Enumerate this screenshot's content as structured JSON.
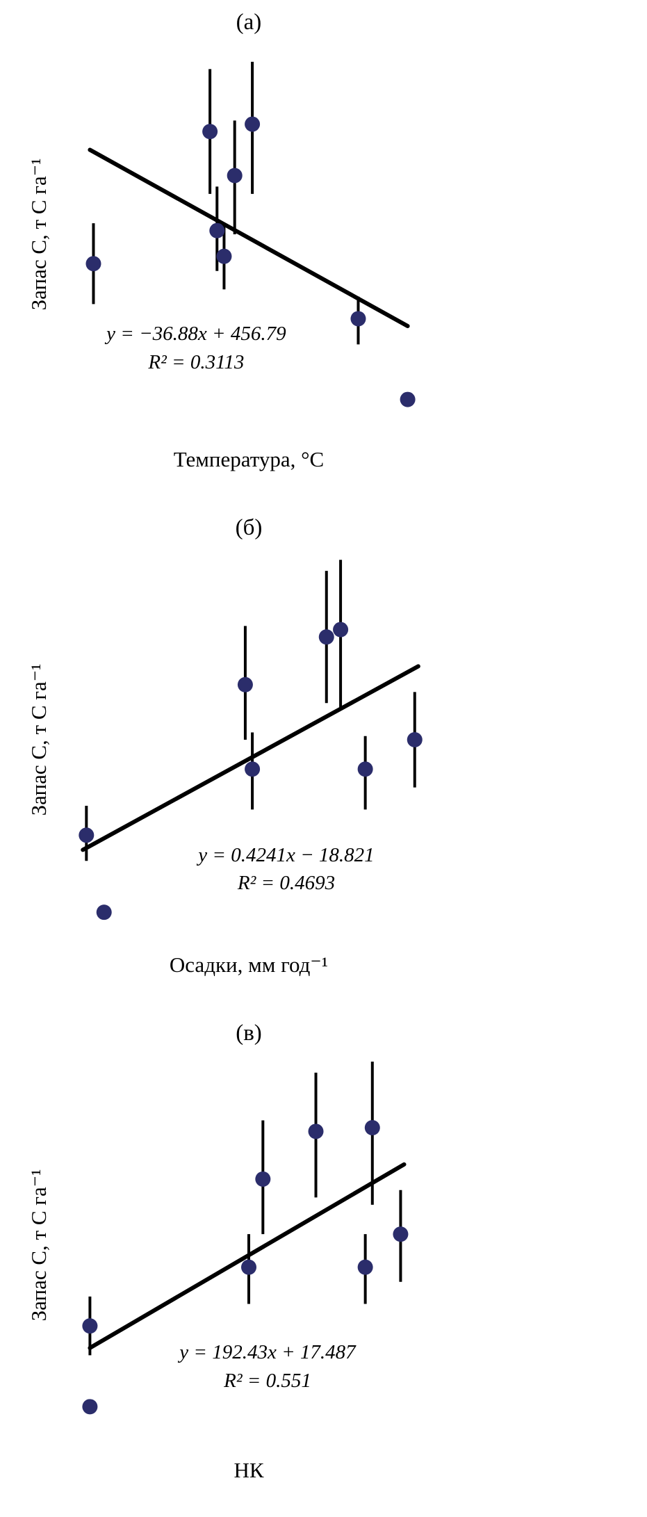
{
  "styles": {
    "point_color": "#2b2d6b",
    "line_color": "#000000",
    "text_color": "#000000",
    "background": "#ffffff"
  },
  "chart_data": [
    {
      "type": "scatter",
      "title": "(а)",
      "xlabel": "Температура, °C",
      "ylabel": "Запас С, т С га⁻¹",
      "equation": "y = −36.88x + 456.79",
      "r_squared": "R² = 0.3113",
      "legend": "none",
      "axes_visible": false,
      "grid": false,
      "coord_system": "fraction of plot area, y increases upward; no axis ticks shown in figure",
      "points": [
        {
          "x": 0.06,
          "y": 0.42,
          "lo": 0.31,
          "hi": 0.53
        },
        {
          "x": 0.39,
          "y": 0.78,
          "lo": 0.61,
          "hi": 0.95
        },
        {
          "x": 0.46,
          "y": 0.66,
          "lo": 0.5,
          "hi": 0.81
        },
        {
          "x": 0.51,
          "y": 0.8,
          "lo": 0.61,
          "hi": 0.97
        },
        {
          "x": 0.41,
          "y": 0.51,
          "lo": 0.4,
          "hi": 0.63
        },
        {
          "x": 0.43,
          "y": 0.44,
          "lo": 0.35,
          "hi": 0.53
        },
        {
          "x": 0.81,
          "y": 0.27,
          "lo": 0.2,
          "hi": 0.33
        },
        {
          "x": 0.95,
          "y": 0.05,
          "lo": null,
          "hi": null
        }
      ],
      "trendline": {
        "x1": 0.05,
        "y1": 0.73,
        "x2": 0.95,
        "y2": 0.25
      },
      "eq_pos": {
        "left_pct": 36,
        "top_pct": 72
      }
    },
    {
      "type": "scatter",
      "title": "(б)",
      "xlabel": "Осадки, мм год⁻¹",
      "ylabel": "Запас С, т С га⁻¹",
      "equation": "y = 0.4241x − 18.821",
      "r_squared": "R² = 0.4693",
      "legend": "none",
      "axes_visible": false,
      "grid": false,
      "coord_system": "fraction of plot area, y increases upward; no axis ticks shown in figure",
      "points": [
        {
          "x": 0.04,
          "y": 0.24,
          "lo": 0.17,
          "hi": 0.32
        },
        {
          "x": 0.09,
          "y": 0.03,
          "lo": null,
          "hi": null
        },
        {
          "x": 0.49,
          "y": 0.65,
          "lo": 0.5,
          "hi": 0.81
        },
        {
          "x": 0.51,
          "y": 0.42,
          "lo": 0.31,
          "hi": 0.52
        },
        {
          "x": 0.72,
          "y": 0.78,
          "lo": 0.6,
          "hi": 0.96
        },
        {
          "x": 0.76,
          "y": 0.8,
          "lo": 0.58,
          "hi": 0.99
        },
        {
          "x": 0.83,
          "y": 0.42,
          "lo": 0.31,
          "hi": 0.51
        },
        {
          "x": 0.97,
          "y": 0.5,
          "lo": 0.37,
          "hi": 0.63
        }
      ],
      "trendline": {
        "x1": 0.03,
        "y1": 0.2,
        "x2": 0.98,
        "y2": 0.7
      },
      "eq_pos": {
        "left_pct": 60,
        "top_pct": 76
      }
    },
    {
      "type": "scatter",
      "title": "(в)",
      "xlabel": "НК",
      "ylabel": "Запас С, т С га⁻¹",
      "equation": "y = 192.43x + 17.487",
      "r_squared": "R² = 0.551",
      "legend": "none",
      "axes_visible": false,
      "grid": false,
      "coord_system": "fraction of plot area, y increases upward; no axis ticks shown in figure",
      "points": [
        {
          "x": 0.05,
          "y": 0.28,
          "lo": 0.2,
          "hi": 0.36
        },
        {
          "x": 0.05,
          "y": 0.06,
          "lo": null,
          "hi": null
        },
        {
          "x": 0.54,
          "y": 0.68,
          "lo": 0.53,
          "hi": 0.84
        },
        {
          "x": 0.5,
          "y": 0.44,
          "lo": 0.34,
          "hi": 0.53
        },
        {
          "x": 0.69,
          "y": 0.81,
          "lo": 0.63,
          "hi": 0.97
        },
        {
          "x": 0.85,
          "y": 0.82,
          "lo": 0.61,
          "hi": 1.0
        },
        {
          "x": 0.83,
          "y": 0.44,
          "lo": 0.34,
          "hi": 0.53
        },
        {
          "x": 0.93,
          "y": 0.53,
          "lo": 0.4,
          "hi": 0.65
        }
      ],
      "trendline": {
        "x1": 0.05,
        "y1": 0.22,
        "x2": 0.94,
        "y2": 0.72
      },
      "eq_pos": {
        "left_pct": 55,
        "top_pct": 74
      }
    }
  ]
}
